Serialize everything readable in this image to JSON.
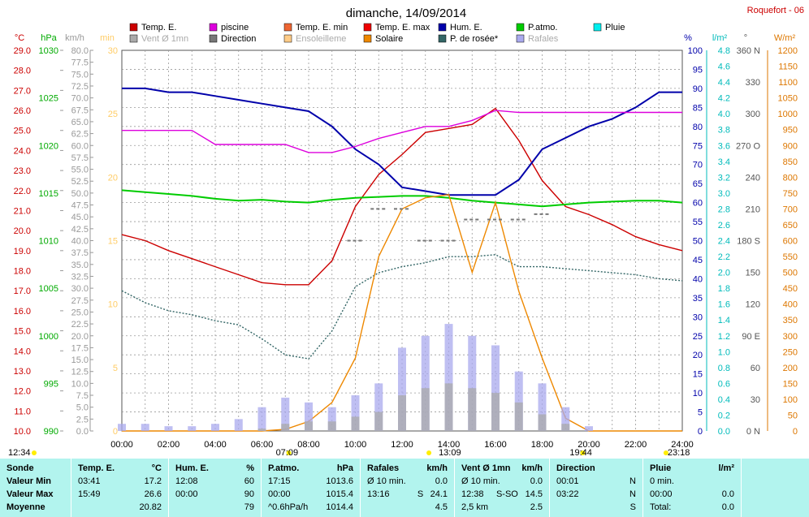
{
  "title": "dimanche, 14/09/2014",
  "station": "Roquefort - 06",
  "legend": [
    {
      "label": "Temp. E.",
      "color": "#cc0000",
      "muted": false
    },
    {
      "label": "piscine",
      "color": "#dd00dd",
      "muted": false
    },
    {
      "label": "Temp. E. min",
      "color": "#ee6633",
      "muted": false
    },
    {
      "label": "Temp. E. max",
      "color": "#ee0000",
      "muted": false
    },
    {
      "label": "Hum. E.",
      "color": "#0000aa",
      "muted": false
    },
    {
      "label": "P.atmo.",
      "color": "#00cc00",
      "muted": false
    },
    {
      "label": "Pluie",
      "color": "#00eeee",
      "muted": false
    },
    {
      "label": "Vent Ø 1mn",
      "color": "#aaaaaa",
      "muted": true
    },
    {
      "label": "Direction",
      "color": "#777777",
      "muted": false
    },
    {
      "label": "Ensoleilleme",
      "color": "#ffcc88",
      "muted": true
    },
    {
      "label": "Solaire",
      "color": "#ee8800",
      "muted": false
    },
    {
      "label": "P. de rosée*",
      "color": "#336666",
      "muted": false
    },
    {
      "label": "Rafales",
      "color": "#aaaaee",
      "muted": true
    }
  ],
  "axis_units": {
    "temp": "°C",
    "pressure": "hPa",
    "wind": "km/h",
    "minutes": "min",
    "humidity": "%",
    "rain": "l/m²",
    "direction": "°",
    "solar": "W/m²"
  },
  "axes": {
    "temp": {
      "labels": [
        "29.0",
        "28.0",
        "27.0",
        "26.0",
        "25.0",
        "24.0",
        "23.0",
        "22.0",
        "21.0",
        "20.0",
        "19.0",
        "18.0",
        "17.0",
        "16.0",
        "15.0",
        "14.0",
        "13.0",
        "12.0",
        "11.0",
        "10.0"
      ],
      "color": "#cc0000"
    },
    "pressure": {
      "labels": [
        "1030",
        "1025",
        "1020",
        "1015",
        "1010",
        "1005",
        "1000",
        "995",
        "990"
      ],
      "color": "#00aa00"
    },
    "wind": {
      "labels": [
        "80.0",
        "77.5",
        "75.0",
        "72.5",
        "70.0",
        "67.5",
        "65.0",
        "62.5",
        "60.0",
        "57.5",
        "55.0",
        "52.5",
        "50.0",
        "47.5",
        "45.0",
        "42.5",
        "40.0",
        "37.5",
        "35.0",
        "32.5",
        "30.0",
        "27.5",
        "25.0",
        "22.5",
        "20.0",
        "17.5",
        "15.0",
        "12.5",
        "10.0",
        "7.5",
        "5.0",
        "2.5",
        "0.0"
      ],
      "color": "#999999"
    },
    "minutes": {
      "labels": [
        "30",
        "25",
        "20",
        "15",
        "10",
        "5",
        "0"
      ],
      "color": "#ffcc66"
    },
    "humidity": {
      "labels": [
        "100",
        "95",
        "90",
        "85",
        "80",
        "75",
        "70",
        "65",
        "60",
        "55",
        "50",
        "45",
        "40",
        "35",
        "30",
        "25",
        "20",
        "15",
        "10",
        "5",
        "0"
      ],
      "color": "#0000aa"
    },
    "rain": {
      "labels": [
        "4.8",
        "4.6",
        "4.4",
        "4.2",
        "4.0",
        "3.8",
        "3.6",
        "3.4",
        "3.2",
        "3.0",
        "2.8",
        "2.6",
        "2.4",
        "2.2",
        "2.0",
        "1.8",
        "1.6",
        "1.4",
        "1.2",
        "1.0",
        "0.8",
        "0.6",
        "0.4",
        "0.2",
        "0.0"
      ],
      "color": "#00bbbb"
    },
    "direction": {
      "labels": [
        "360 N",
        "330",
        "300",
        "270 O",
        "240",
        "210",
        "180 S",
        "150",
        "120",
        "90 E",
        "60",
        "30",
        "0 N"
      ],
      "color": "#555555"
    },
    "solar": {
      "labels": [
        "1200",
        "1150",
        "1100",
        "1050",
        "1000",
        "950",
        "900",
        "850",
        "800",
        "750",
        "700",
        "650",
        "600",
        "550",
        "500",
        "450",
        "400",
        "350",
        "300",
        "250",
        "200",
        "150",
        "100",
        "50",
        "0"
      ],
      "color": "#dd7700"
    },
    "time": {
      "labels": [
        "00:00",
        "02:00",
        "04:00",
        "06:00",
        "08:00",
        "10:00",
        "12:00",
        "14:00",
        "16:00",
        "18:00",
        "20:00",
        "22:00",
        "24:00"
      ]
    }
  },
  "time_markers": {
    "sunrise": "07:09",
    "sunset": "19:44",
    "solar_noon": "13:09",
    "moonrise": "12:34",
    "moonset": "23:18"
  },
  "chart_data": {
    "type": "line",
    "x": [
      "00:00",
      "01:00",
      "02:00",
      "03:00",
      "04:00",
      "05:00",
      "06:00",
      "07:00",
      "08:00",
      "09:00",
      "10:00",
      "11:00",
      "12:00",
      "13:00",
      "14:00",
      "15:00",
      "16:00",
      "17:00",
      "18:00",
      "19:00",
      "20:00",
      "21:00",
      "22:00",
      "23:00",
      "24:00"
    ],
    "series": [
      {
        "name": "Temp. E.",
        "axis": "temp",
        "color": "#cc0000",
        "values": [
          19.8,
          19.5,
          19.0,
          18.6,
          18.2,
          17.8,
          17.4,
          17.3,
          17.3,
          18.5,
          21.2,
          22.8,
          23.8,
          24.9,
          25.1,
          25.3,
          26.1,
          24.5,
          22.5,
          21.2,
          20.8,
          20.3,
          19.7,
          19.3,
          19.0
        ]
      },
      {
        "name": "Hum. E.",
        "axis": "humidity",
        "color": "#0000aa",
        "values": [
          90,
          90,
          89,
          89,
          88,
          87,
          86,
          85,
          84,
          80,
          74,
          70,
          64,
          63,
          62,
          62,
          62,
          66,
          74,
          77,
          80,
          82,
          85,
          89,
          89
        ]
      },
      {
        "name": "P.atmo.",
        "axis": "pressure",
        "color": "#00cc00",
        "values": [
          1015.3,
          1015.1,
          1014.9,
          1014.7,
          1014.4,
          1014.2,
          1014.3,
          1014.1,
          1014.0,
          1014.3,
          1014.5,
          1014.6,
          1014.7,
          1014.7,
          1014.5,
          1014.2,
          1014.0,
          1013.8,
          1013.6,
          1013.8,
          1014.0,
          1014.1,
          1014.2,
          1014.2,
          1014.0
        ]
      },
      {
        "name": "piscine",
        "axis": "temp",
        "color": "#dd00dd",
        "values": [
          25.0,
          25.0,
          25.0,
          25.0,
          24.3,
          24.3,
          24.3,
          24.3,
          23.9,
          23.9,
          24.2,
          24.6,
          24.9,
          25.2,
          25.2,
          25.5,
          26.0,
          25.9,
          25.9,
          25.9,
          25.9,
          25.9,
          25.9,
          25.9,
          25.9
        ]
      },
      {
        "name": "P. de rosée*",
        "axis": "temp",
        "color": "#336666",
        "values": [
          17.0,
          16.4,
          16.0,
          15.8,
          15.5,
          15.3,
          14.6,
          13.8,
          13.6,
          15.0,
          17.2,
          17.9,
          18.2,
          18.4,
          18.7,
          18.7,
          18.8,
          18.2,
          18.2,
          18.1,
          18.0,
          17.9,
          17.8,
          17.6,
          17.5
        ]
      },
      {
        "name": "Solaire",
        "axis": "solar",
        "color": "#ee8800",
        "values": [
          0,
          0,
          0,
          0,
          0,
          0,
          0,
          5,
          30,
          90,
          230,
          550,
          700,
          735,
          745,
          500,
          720,
          440,
          230,
          40,
          0,
          0,
          0,
          0,
          0
        ]
      },
      {
        "name": "Rafales",
        "axis": "wind",
        "color": "#aaaaee",
        "values": [
          1.5,
          1.5,
          1.0,
          1.0,
          1.5,
          2.5,
          5.0,
          7.0,
          6.0,
          5.0,
          7.5,
          10.0,
          17.5,
          20.0,
          22.5,
          20.0,
          18.0,
          12.5,
          10.0,
          5.0,
          1.0,
          0,
          0,
          0,
          0
        ]
      },
      {
        "name": "Vent Ø 1mn",
        "axis": "wind",
        "color": "#aaaaaa",
        "values": [
          0,
          0,
          0,
          0,
          0,
          0,
          0.5,
          1.5,
          2.0,
          2.0,
          3.0,
          4.0,
          7.5,
          9.0,
          10.0,
          9.0,
          8.0,
          6.0,
          3.5,
          1.5,
          0,
          0,
          0,
          0,
          0
        ]
      },
      {
        "name": "Direction",
        "axis": "direction",
        "color": "#777777",
        "values": [
          null,
          null,
          null,
          null,
          null,
          null,
          null,
          null,
          null,
          null,
          180,
          210,
          210,
          180,
          180,
          200,
          200,
          200,
          205,
          null,
          null,
          null,
          null,
          null,
          null
        ]
      }
    ],
    "title": "dimanche, 14/09/2014",
    "xlabel": "",
    "ylim_temp": [
      10,
      29
    ],
    "ylim_pressure": [
      990,
      1030
    ],
    "ylim_wind": [
      0,
      80
    ],
    "ylim_humidity": [
      0,
      100
    ],
    "ylim_rain": [
      0,
      4.8
    ],
    "ylim_direction": [
      0,
      360
    ],
    "ylim_solar": [
      0,
      1200
    ],
    "grid": true
  },
  "table": {
    "columns": [
      {
        "head": [
          "Sonde",
          "",
          ""
        ],
        "rows": [
          [
            "Valeur Min",
            "",
            ""
          ],
          [
            "Valeur Max",
            "",
            ""
          ],
          [
            "Moyenne",
            "",
            ""
          ]
        ]
      },
      {
        "head": [
          "Temp. E.",
          "",
          "°C"
        ],
        "rows": [
          [
            "03:41",
            "",
            "17.2"
          ],
          [
            "15:49",
            "",
            "26.6"
          ],
          [
            "",
            "",
            "20.82"
          ]
        ]
      },
      {
        "head": [
          "Hum. E.",
          "",
          "%"
        ],
        "rows": [
          [
            "12:08",
            "",
            "60"
          ],
          [
            "00:00",
            "",
            "90"
          ],
          [
            "",
            "",
            "79"
          ]
        ]
      },
      {
        "head": [
          "P.atmo.",
          "",
          "hPa"
        ],
        "rows": [
          [
            "17:15",
            "",
            "1013.6"
          ],
          [
            "00:00",
            "",
            "1015.4"
          ],
          [
            "^0.6hPa/h",
            "",
            "1014.4"
          ]
        ]
      },
      {
        "head": [
          "Rafales",
          "",
          "km/h"
        ],
        "rows": [
          [
            "Ø 10 min.",
            "",
            "0.0"
          ],
          [
            "13:16",
            "S",
            "24.1"
          ],
          [
            "",
            "",
            "4.5"
          ]
        ]
      },
      {
        "head": [
          "Vent Ø 1mn",
          "",
          "km/h"
        ],
        "rows": [
          [
            "Ø 10 min.",
            "",
            "0.0"
          ],
          [
            "12:38",
            "S-SO",
            "14.5"
          ],
          [
            "2,5 km",
            "",
            "2.5"
          ]
        ]
      },
      {
        "head": [
          "Direction",
          "",
          ""
        ],
        "rows": [
          [
            "00:01",
            "",
            "N"
          ],
          [
            "03:22",
            "",
            "N"
          ],
          [
            "",
            "",
            "S"
          ]
        ]
      },
      {
        "head": [
          "Pluie",
          "",
          "l/m²"
        ],
        "rows": [
          [
            "0 min.",
            "",
            ""
          ],
          [
            "00:00",
            "",
            "0.0"
          ],
          [
            "Total:",
            "",
            "0.0"
          ]
        ]
      }
    ]
  }
}
